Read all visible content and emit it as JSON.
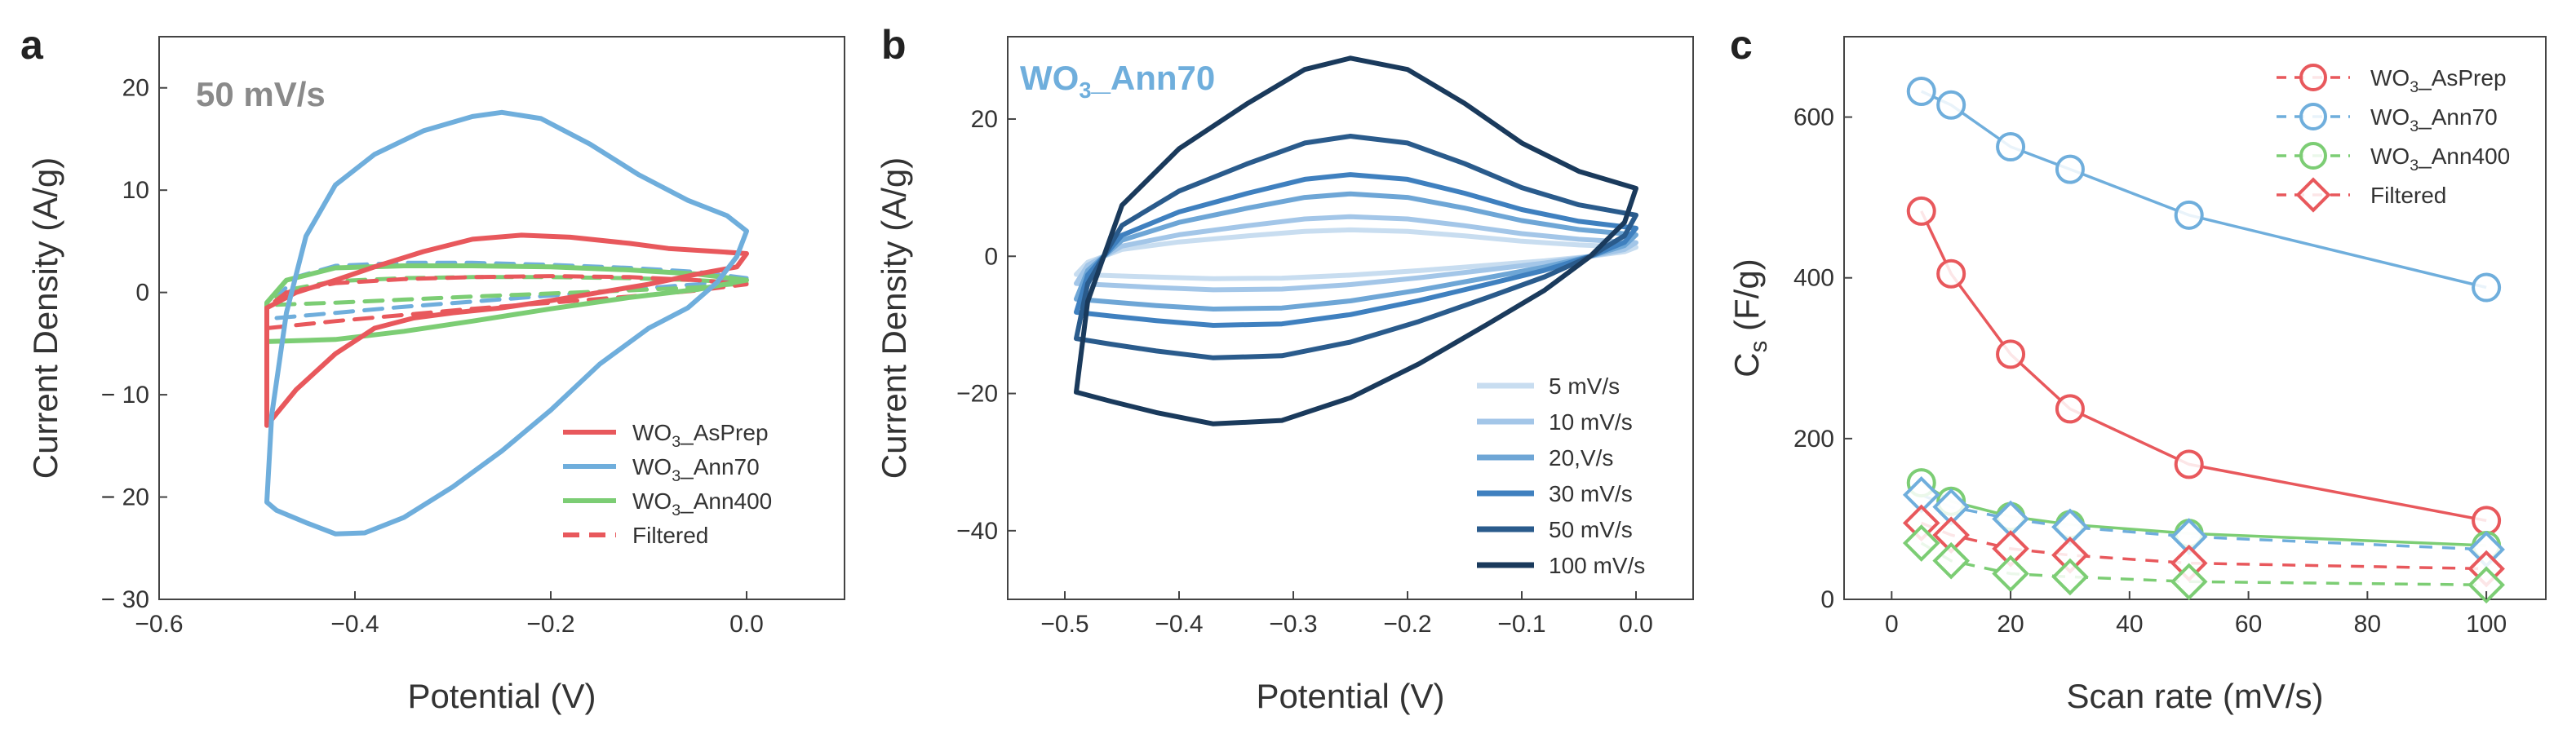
{
  "chart_data": [
    {
      "panel": "a",
      "type": "line",
      "annotation": "50 mV/s",
      "annotation_color": "#8a8a8a",
      "xlabel": "Potential (V)",
      "ylabel": "Current Density (A/g)",
      "xlim": [
        -0.6,
        0.1
      ],
      "ylim": [
        -30,
        25
      ],
      "xticks": [
        -0.6,
        -0.4,
        -0.2,
        0.0
      ],
      "xtick_labels": [
        "−0.6",
        "−0.4",
        "−0.2",
        "0.0"
      ],
      "yticks": [
        -30,
        -20,
        -10,
        0,
        10,
        20
      ],
      "ytick_labels": [
        "− 30",
        "− 20",
        "− 10",
        "0",
        "10",
        "20"
      ],
      "legend_position": "bottom-right",
      "legend": [
        {
          "label": "WO",
          "sub": "3",
          "rest": "_AsPrep",
          "color": "#e8585c",
          "dash": false
        },
        {
          "label": "WO",
          "sub": "3",
          "rest": "_Ann70",
          "color": "#6faedc",
          "dash": false
        },
        {
          "label": "WO",
          "sub": "3",
          "rest": "_Ann400",
          "color": "#7ccd74",
          "dash": false
        },
        {
          "label": "",
          "sub": "",
          "rest": "Filtered",
          "color": "#e8585c",
          "dash": true
        }
      ],
      "series": [
        {
          "name": "WO3_AsPrep",
          "color": "#e8585c",
          "dash": false,
          "width": 6,
          "points": [
            [
              -0.49,
              -13.0
            ],
            [
              -0.46,
              -9.5
            ],
            [
              -0.42,
              -6.0
            ],
            [
              -0.38,
              -3.5
            ],
            [
              -0.34,
              -2.5
            ],
            [
              -0.3,
              -2.0
            ],
            [
              -0.25,
              -1.5
            ],
            [
              -0.2,
              -0.8
            ],
            [
              -0.15,
              0.0
            ],
            [
              -0.1,
              0.8
            ],
            [
              -0.05,
              1.8
            ],
            [
              -0.01,
              2.5
            ],
            [
              0.0,
              3.8
            ],
            [
              -0.03,
              4.0
            ],
            [
              -0.08,
              4.3
            ],
            [
              -0.12,
              4.8
            ],
            [
              -0.18,
              5.4
            ],
            [
              -0.23,
              5.6
            ],
            [
              -0.28,
              5.2
            ],
            [
              -0.33,
              4.0
            ],
            [
              -0.38,
              2.5
            ],
            [
              -0.42,
              1.2
            ],
            [
              -0.46,
              0.0
            ],
            [
              -0.49,
              -1.5
            ]
          ]
        },
        {
          "name": "WO3_Ann70",
          "color": "#6faedc",
          "dash": false,
          "width": 6,
          "points": [
            [
              -0.49,
              -20.5
            ],
            [
              -0.485,
              -12.0
            ],
            [
              -0.47,
              -2.0
            ],
            [
              -0.45,
              5.5
            ],
            [
              -0.42,
              10.5
            ],
            [
              -0.38,
              13.5
            ],
            [
              -0.33,
              15.8
            ],
            [
              -0.28,
              17.2
            ],
            [
              -0.25,
              17.6
            ],
            [
              -0.21,
              17.0
            ],
            [
              -0.16,
              14.5
            ],
            [
              -0.11,
              11.5
            ],
            [
              -0.06,
              9.0
            ],
            [
              -0.02,
              7.5
            ],
            [
              0.0,
              6.0
            ],
            [
              -0.01,
              3.5
            ],
            [
              -0.03,
              1.0
            ],
            [
              -0.06,
              -1.5
            ],
            [
              -0.1,
              -3.5
            ],
            [
              -0.15,
              -7.0
            ],
            [
              -0.2,
              -11.5
            ],
            [
              -0.25,
              -15.5
            ],
            [
              -0.3,
              -19.0
            ],
            [
              -0.35,
              -22.0
            ],
            [
              -0.39,
              -23.5
            ],
            [
              -0.42,
              -23.6
            ],
            [
              -0.45,
              -22.5
            ],
            [
              -0.48,
              -21.3
            ]
          ]
        },
        {
          "name": "WO3_Ann400",
          "color": "#7ccd74",
          "dash": false,
          "width": 6,
          "points": [
            [
              -0.49,
              -4.8
            ],
            [
              -0.42,
              -4.6
            ],
            [
              -0.35,
              -3.8
            ],
            [
              -0.28,
              -2.8
            ],
            [
              -0.2,
              -1.6
            ],
            [
              -0.12,
              -0.5
            ],
            [
              -0.05,
              0.3
            ],
            [
              0.0,
              1.2
            ],
            [
              -0.05,
              1.8
            ],
            [
              -0.12,
              2.2
            ],
            [
              -0.2,
              2.5
            ],
            [
              -0.28,
              2.6
            ],
            [
              -0.35,
              2.6
            ],
            [
              -0.42,
              2.4
            ],
            [
              -0.47,
              1.2
            ],
            [
              -0.49,
              -1.0
            ],
            [
              -0.49,
              -4.8
            ]
          ]
        },
        {
          "name": "Filtered",
          "color": "#e8585c",
          "dash": true,
          "width": 5,
          "points": [
            [
              -0.49,
              -3.5
            ],
            [
              -0.42,
              -2.8
            ],
            [
              -0.35,
              -2.2
            ],
            [
              -0.28,
              -1.6
            ],
            [
              -0.2,
              -1.0
            ],
            [
              -0.12,
              -0.4
            ],
            [
              -0.05,
              0.2
            ],
            [
              0.0,
              0.8
            ],
            [
              -0.05,
              1.2
            ],
            [
              -0.12,
              1.5
            ],
            [
              -0.2,
              1.6
            ],
            [
              -0.28,
              1.5
            ],
            [
              -0.35,
              1.3
            ],
            [
              -0.42,
              0.9
            ],
            [
              -0.47,
              0.0
            ],
            [
              -0.49,
              -1.5
            ]
          ]
        },
        {
          "name": "WO3_Ann70 dashed",
          "color": "#6faedc",
          "dash": true,
          "width": 5,
          "points": [
            [
              -0.48,
              -2.5
            ],
            [
              -0.42,
              -2.0
            ],
            [
              -0.35,
              -1.4
            ],
            [
              -0.28,
              -0.9
            ],
            [
              -0.2,
              -0.3
            ],
            [
              -0.12,
              0.3
            ],
            [
              -0.05,
              0.8
            ],
            [
              0.0,
              1.4
            ],
            [
              -0.05,
              2.0
            ],
            [
              -0.12,
              2.4
            ],
            [
              -0.2,
              2.7
            ],
            [
              -0.28,
              2.9
            ],
            [
              -0.35,
              2.9
            ],
            [
              -0.42,
              2.6
            ],
            [
              -0.46,
              1.5
            ],
            [
              -0.48,
              -0.5
            ]
          ]
        },
        {
          "name": "WO3_Ann400 dashed",
          "color": "#7ccd74",
          "dash": true,
          "width": 5,
          "points": [
            [
              -0.48,
              -1.2
            ],
            [
              -0.42,
              -1.0
            ],
            [
              -0.35,
              -0.7
            ],
            [
              -0.28,
              -0.4
            ],
            [
              -0.2,
              -0.1
            ],
            [
              -0.12,
              0.2
            ],
            [
              -0.05,
              0.5
            ],
            [
              0.0,
              0.9
            ],
            [
              -0.05,
              1.2
            ],
            [
              -0.12,
              1.4
            ],
            [
              -0.2,
              1.5
            ],
            [
              -0.28,
              1.5
            ],
            [
              -0.35,
              1.4
            ],
            [
              -0.42,
              1.1
            ],
            [
              -0.46,
              0.4
            ],
            [
              -0.48,
              -0.5
            ]
          ]
        }
      ]
    },
    {
      "panel": "b",
      "type": "line",
      "annotation": "WO",
      "annotation_sub": "3",
      "annotation_rest": "_Ann70",
      "annotation_color": "#6faedc",
      "xlabel": "Potential (V)",
      "ylabel": "Current Density (A/g)",
      "xlim": [
        -0.55,
        0.05
      ],
      "ylim": [
        -50,
        32
      ],
      "xticks": [
        -0.5,
        -0.4,
        -0.3,
        -0.2,
        -0.1,
        0.0
      ],
      "xtick_labels": [
        "−0.5",
        "−0.4",
        "−0.3",
        "−0.2",
        "−0.1",
        "0.0"
      ],
      "yticks": [
        -40,
        -20,
        0,
        20
      ],
      "ytick_labels": [
        "−40",
        "−20",
        "0",
        "20"
      ],
      "legend_position": "bottom-right",
      "legend": [
        {
          "label": "5 mV/s",
          "color": "#c8ddf0"
        },
        {
          "label": "10 mV/s",
          "color": "#a3c6e8"
        },
        {
          "label": "20,V/s",
          "color": "#6ea6d6"
        },
        {
          "label": "30 mV/s",
          "color": "#3f80bf"
        },
        {
          "label": "50 mV/s",
          "color": "#2a5b8c"
        },
        {
          "label": "100 mV/s",
          "color": "#1a3a5c"
        }
      ],
      "loops": [
        {
          "name": "5 mV/s",
          "color": "#c8ddf0",
          "amp": 0.22
        },
        {
          "name": "10 mV/s",
          "color": "#a3c6e8",
          "amp": 0.33
        },
        {
          "name": "20,V/s",
          "color": "#6ea6d6",
          "amp": 0.52
        },
        {
          "name": "30 mV/s",
          "color": "#3f80bf",
          "amp": 0.68
        },
        {
          "name": "50 mV/s",
          "color": "#2a5b8c",
          "amp": 1.0
        },
        {
          "name": "100 mV/s",
          "color": "#1a3a5c",
          "amp": 1.65
        }
      ],
      "base_loop": {
        "upper": [
          [
            -0.49,
            -12.0
          ],
          [
            -0.48,
            -4.0
          ],
          [
            -0.45,
            4.5
          ],
          [
            -0.4,
            9.5
          ],
          [
            -0.34,
            13.5
          ],
          [
            -0.29,
            16.5
          ],
          [
            -0.25,
            17.5
          ],
          [
            -0.2,
            16.5
          ],
          [
            -0.15,
            13.5
          ],
          [
            -0.1,
            10.0
          ],
          [
            -0.05,
            7.5
          ],
          [
            0.0,
            6.0
          ]
        ],
        "lower": [
          [
            0.0,
            6.0
          ],
          [
            -0.01,
            3.0
          ],
          [
            -0.04,
            0.0
          ],
          [
            -0.08,
            -3.0
          ],
          [
            -0.13,
            -6.0
          ],
          [
            -0.19,
            -9.5
          ],
          [
            -0.25,
            -12.5
          ],
          [
            -0.31,
            -14.5
          ],
          [
            -0.37,
            -14.8
          ],
          [
            -0.42,
            -13.8
          ],
          [
            -0.46,
            -12.8
          ],
          [
            -0.49,
            -12.0
          ]
        ]
      }
    },
    {
      "panel": "c",
      "type": "scatter",
      "xlabel": "Scan rate (mV/s)",
      "ylabel": "C",
      "ylabel_sub": "s",
      "ylabel_rest": " (F/g)",
      "xlim": [
        -8,
        110
      ],
      "ylim": [
        0,
        700
      ],
      "xticks": [
        0,
        20,
        40,
        60,
        80,
        100
      ],
      "xtick_labels": [
        "0",
        "20",
        "40",
        "60",
        "80",
        "100"
      ],
      "yticks": [
        0,
        200,
        400,
        600
      ],
      "ytick_labels": [
        "0",
        "200",
        "400",
        "600"
      ],
      "x": [
        5,
        10,
        20,
        30,
        50,
        100
      ],
      "legend_position": "top-right",
      "legend": [
        {
          "label": "WO",
          "sub": "3",
          "rest": "_AsPrep",
          "color": "#e8585c",
          "marker": "circle"
        },
        {
          "label": "WO",
          "sub": "3",
          "rest": "_Ann70",
          "color": "#6faedc",
          "marker": "circle"
        },
        {
          "label": "WO",
          "sub": "3",
          "rest": "_Ann400",
          "color": "#7ccd74",
          "marker": "circle"
        },
        {
          "label": "",
          "sub": "",
          "rest": "Filtered",
          "color": "#e8585c",
          "marker": "diamond"
        }
      ],
      "series": [
        {
          "name": "WO3_Ann70",
          "color": "#6faedc",
          "marker": "circle",
          "dash": false,
          "values": [
            632,
            615,
            563,
            535,
            478,
            388
          ]
        },
        {
          "name": "WO3_AsPrep",
          "color": "#e8585c",
          "marker": "circle",
          "dash": false,
          "values": [
            483,
            405,
            305,
            237,
            168,
            98
          ]
        },
        {
          "name": "WO3_Ann400",
          "color": "#7ccd74",
          "marker": "circle",
          "dash": false,
          "values": [
            145,
            122,
            103,
            93,
            82,
            67
          ]
        },
        {
          "name": "WO3_Ann70 (filtered)",
          "color": "#6faedc",
          "marker": "diamond",
          "dash": true,
          "values": [
            130,
            115,
            100,
            90,
            78,
            62
          ]
        },
        {
          "name": "Filtered",
          "color": "#e8585c",
          "marker": "diamond",
          "dash": true,
          "values": [
            95,
            80,
            63,
            55,
            45,
            38
          ]
        },
        {
          "name": "WO3_Ann400 (filtered)",
          "color": "#7ccd74",
          "marker": "diamond",
          "dash": true,
          "values": [
            70,
            48,
            32,
            28,
            22,
            18
          ]
        }
      ]
    }
  ]
}
